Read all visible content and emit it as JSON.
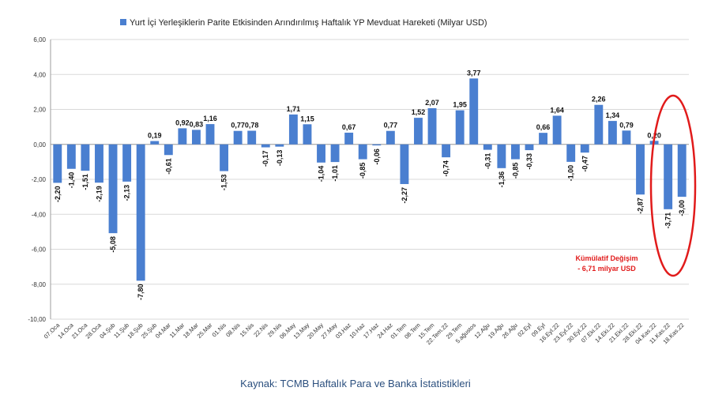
{
  "chart_data": {
    "type": "bar",
    "legend": {
      "label": "Yurt İçi Yerleşiklerin Parite Etkisinden Arındırılmış Haftalık YP Mevduat Hareketi (Milyar USD)",
      "placement": "top-center",
      "color": "#4a7fd0"
    },
    "ylim": [
      -10,
      6
    ],
    "y_ticks": [
      "-10,00",
      "-8,00",
      "-6,00",
      "-4,00",
      "-2,00",
      "0,00",
      "2,00",
      "4,00",
      "6,00"
    ],
    "grid": true,
    "categories": [
      "07.Oca",
      "14.Oca",
      "21.Oca",
      "28.Oca",
      "04.Şub",
      "11.Şub",
      "18.Şub",
      "25.Şub",
      "04.Mar",
      "11.Mar",
      "18.Mar",
      "25.Mar",
      "01.Nis",
      "08.Nis",
      "15.Nis",
      "22.Nis",
      "29.Nis",
      "06.May",
      "13.May",
      "20.May",
      "27.May",
      "03.Haz",
      "10.Haz",
      "17.Haz",
      "24.Haz",
      "01.Tem",
      "08.Tem",
      "15.Tem",
      "22.Tem.22",
      "29.Tem",
      "5.ağustos",
      "12.Ağu",
      "19.Ağu",
      "26.Ağu",
      "02.Eyl",
      "09.Eyl",
      "16.Eyl.22",
      "23.Eyl.22",
      "30.Eyl.22",
      "07.Eki.22",
      "14.Eki.22",
      "21.Eki.22",
      "28.Eki.22",
      "04.Kas.22",
      "11.Kas.22",
      "18.Kas.22"
    ],
    "values": [
      -2.2,
      -1.4,
      -1.51,
      -2.19,
      -5.08,
      -2.13,
      -7.8,
      0.19,
      -0.61,
      0.92,
      0.83,
      1.16,
      -1.53,
      0.77,
      0.78,
      -0.17,
      -0.13,
      1.71,
      1.15,
      -1.04,
      -1.01,
      0.67,
      -0.85,
      -0.06,
      0.77,
      -2.27,
      1.52,
      2.07,
      -0.74,
      1.95,
      3.77,
      -0.31,
      -1.36,
      -0.85,
      -0.33,
      0.66,
      1.64,
      -1.0,
      -0.47,
      2.26,
      1.34,
      0.79,
      -2.87,
      0.2,
      -3.71,
      -3.0
    ],
    "labels": [
      "-2,20",
      "-1,40",
      "-1,51",
      "-2,19",
      "-5,08",
      "-2,13",
      "-7,80",
      "0,19",
      "-0,61",
      "0,92",
      "0,83",
      "1,16",
      "-1,53",
      "0,77",
      "0,78",
      "-0,17",
      "-0,13",
      "1,71",
      "1,15",
      "-1,04",
      "-1,01",
      "0,67",
      "-0,85",
      "-0,06",
      "0,77",
      "-2,27",
      "1,52",
      "2,07",
      "-0,74",
      "1,95",
      "3,77",
      "-0,31",
      "-1,36",
      "-0,85",
      "-0,33",
      "0,66",
      "1,64",
      "-1,00",
      "-0,47",
      "2,26",
      "1,34",
      "0,79",
      "-2,87",
      "0,20",
      "-3,71",
      "-3,00"
    ],
    "annotation": {
      "line1": "Kümülatif Değişim",
      "line2": "- 6,71 milyar USD",
      "highlighted_categories": [
        "11.Kas.22",
        "18.Kas.22"
      ],
      "color": "#e11b1b"
    }
  },
  "source": "Kaynak: TCMB Haftalık Para ve Banka İstatistikleri"
}
